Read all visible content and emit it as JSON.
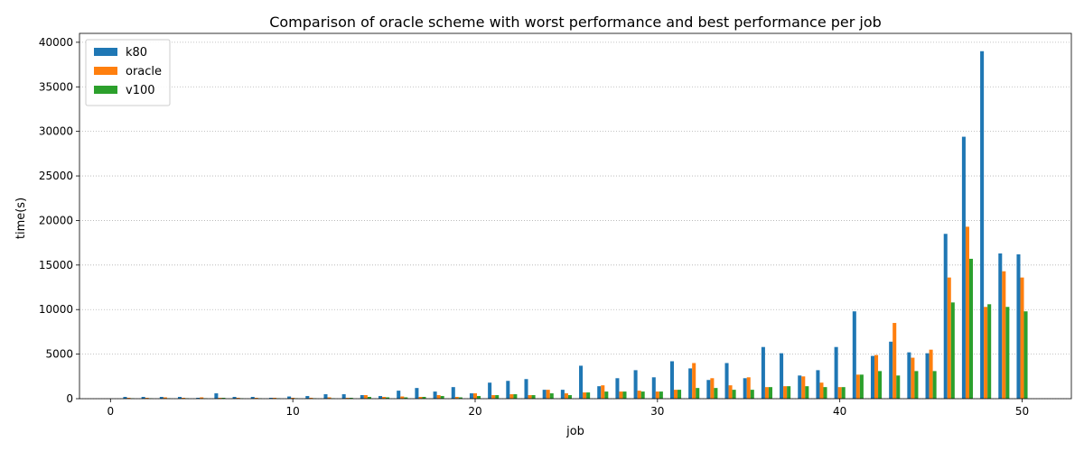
{
  "chart_data": {
    "type": "bar",
    "title": "Comparison of oracle scheme with worst performance and best performance per job",
    "xlabel": "job",
    "ylabel": "time(s)",
    "xlim": [
      -1.7,
      52.7
    ],
    "ylim": [
      0,
      41000
    ],
    "x_ticks": [
      0,
      10,
      20,
      30,
      40,
      50
    ],
    "y_ticks": [
      0,
      5000,
      10000,
      15000,
      20000,
      25000,
      30000,
      35000,
      40000
    ],
    "grid": "y-dotted",
    "legend_position": "top-left",
    "x": [
      1,
      2,
      3,
      4,
      5,
      6,
      7,
      8,
      9,
      10,
      11,
      12,
      13,
      14,
      15,
      16,
      17,
      18,
      19,
      20,
      21,
      22,
      23,
      24,
      25,
      26,
      27,
      28,
      29,
      30,
      31,
      32,
      33,
      34,
      35,
      36,
      37,
      38,
      39,
      40,
      41,
      42,
      43,
      44,
      45,
      46,
      47,
      48,
      49,
      50
    ],
    "series": [
      {
        "name": "k80",
        "color": "#1f77b4",
        "values": [
          200,
          200,
          200,
          200,
          100,
          600,
          200,
          200,
          100,
          250,
          300,
          500,
          500,
          400,
          300,
          900,
          1200,
          800,
          1300,
          600,
          1800,
          2000,
          2200,
          1000,
          1000,
          3700,
          1400,
          2300,
          3200,
          2400,
          4200,
          3400,
          2100,
          4000,
          2300,
          5800,
          5100,
          2600,
          3200,
          5800,
          9800,
          4800,
          6400,
          5200,
          5100,
          18500,
          29400,
          39000,
          16300,
          16200
        ]
      },
      {
        "name": "oracle",
        "color": "#ff7f0e",
        "values": [
          100,
          100,
          150,
          100,
          150,
          100,
          100,
          100,
          100,
          100,
          100,
          150,
          100,
          400,
          200,
          250,
          200,
          400,
          200,
          600,
          400,
          500,
          400,
          1000,
          600,
          700,
          1500,
          800,
          900,
          800,
          1000,
          4000,
          2300,
          1500,
          2400,
          1300,
          1400,
          2500,
          1800,
          1300,
          2700,
          4900,
          8500,
          4600,
          5500,
          13600,
          19300,
          10300,
          14300,
          13600
        ]
      },
      {
        "name": "v100",
        "color": "#2ca02c",
        "values": [
          50,
          50,
          50,
          50,
          50,
          100,
          50,
          50,
          50,
          50,
          50,
          50,
          100,
          200,
          150,
          150,
          200,
          300,
          150,
          300,
          400,
          500,
          400,
          600,
          400,
          700,
          800,
          800,
          800,
          800,
          1000,
          1200,
          1200,
          1000,
          1000,
          1300,
          1400,
          1400,
          1300,
          1300,
          2700,
          3100,
          2600,
          3100,
          3100,
          10800,
          15700,
          10600,
          10300,
          9800
        ]
      }
    ]
  }
}
